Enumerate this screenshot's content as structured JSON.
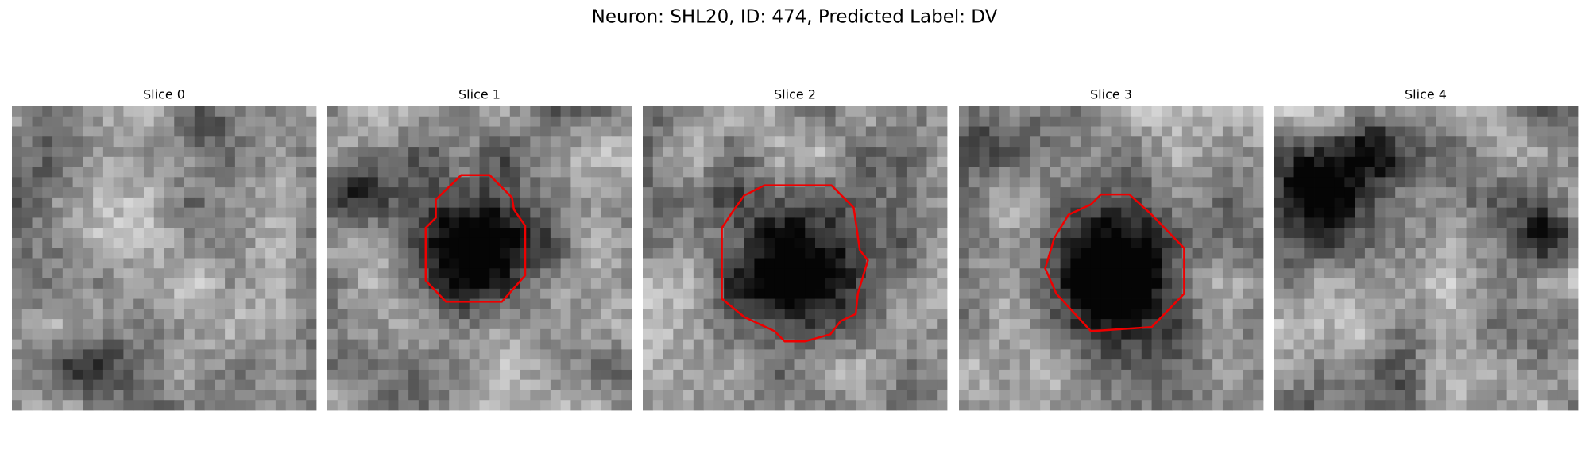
{
  "title": "Neuron: SHL20, ID: 474, Predicted Label: DV",
  "panels": [
    {
      "title": "Slice 0"
    },
    {
      "title": "Slice 1"
    },
    {
      "title": "Slice 2"
    },
    {
      "title": "Slice 3"
    },
    {
      "title": "Slice 4"
    }
  ]
}
